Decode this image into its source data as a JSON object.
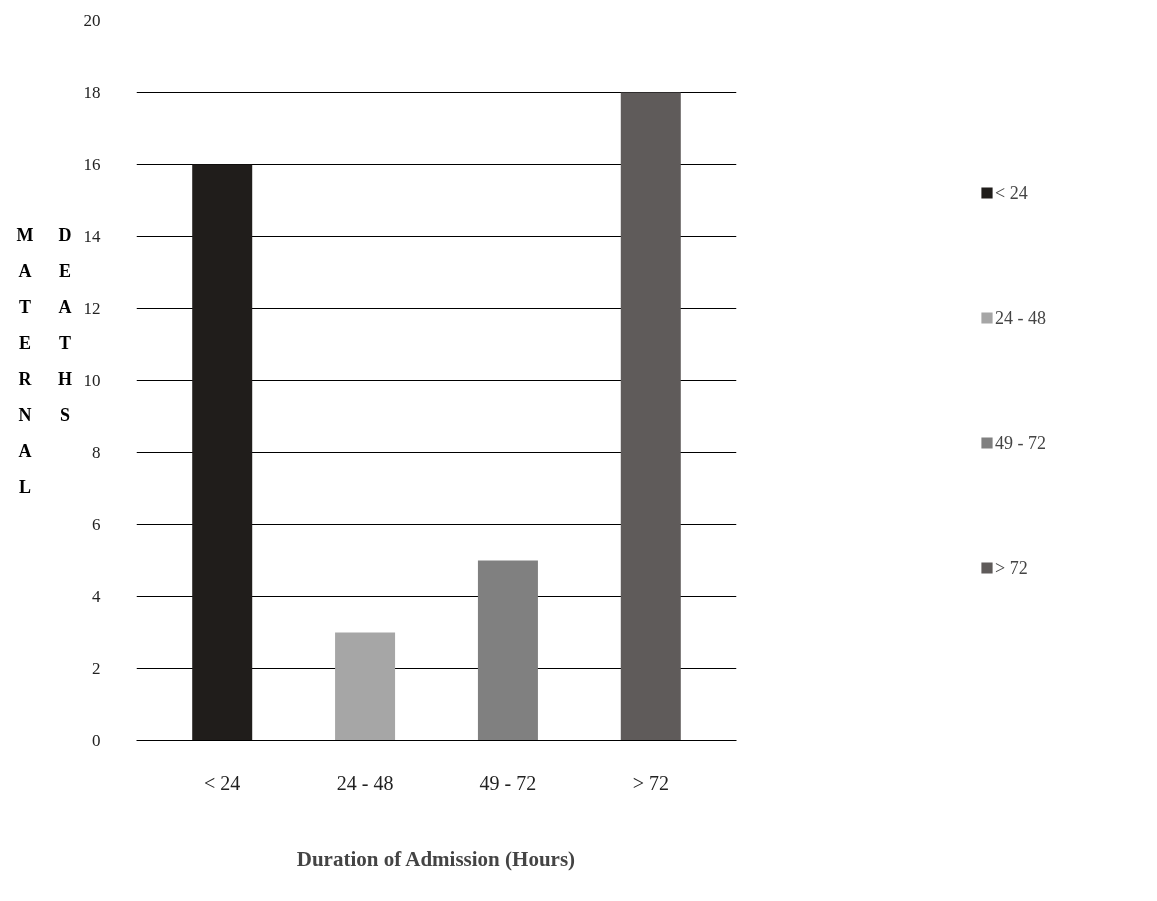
{
  "chart_data": {
    "type": "bar",
    "categories": [
      "< 24",
      "24 - 48",
      "49 - 72",
      "> 72"
    ],
    "series": [
      {
        "name": "< 24",
        "color": "#201d1b",
        "values": [
          16,
          null,
          null,
          null
        ]
      },
      {
        "name": "24 - 48",
        "color": "#a6a6a6",
        "values": [
          null,
          3,
          null,
          null
        ]
      },
      {
        "name": "49 - 72",
        "color": "#808080",
        "values": [
          null,
          null,
          5,
          null
        ]
      },
      {
        "name": "> 72",
        "color": "#5f5b5a",
        "values": [
          null,
          null,
          null,
          18
        ]
      }
    ],
    "xlabel": "Duration of Admission (Hours)",
    "ylabel": "MATERNAL DEATHS",
    "ylim": [
      0,
      20
    ],
    "yticks": [
      0,
      2,
      4,
      6,
      8,
      10,
      12,
      14,
      16,
      18,
      20
    ],
    "grid": "y",
    "legend": "right"
  }
}
